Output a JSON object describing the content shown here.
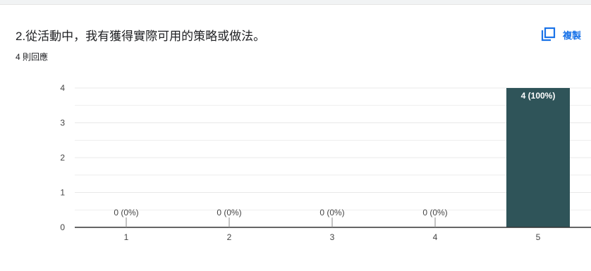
{
  "question": {
    "title": "2.從活動中，我有獲得實際可用的策略或做法。",
    "response_count": "4 則回應"
  },
  "copy_button": {
    "label": "複製",
    "icon": "copy-icon"
  },
  "colors": {
    "bar": "#2f5459",
    "accent": "#1a73e8",
    "gridline": "#e8e8e8",
    "axis": "#333333"
  },
  "chart_data": {
    "type": "bar",
    "categories": [
      "1",
      "2",
      "3",
      "4",
      "5"
    ],
    "values": [
      0,
      0,
      0,
      0,
      4
    ],
    "data_labels": [
      "0 (0%)",
      "0 (0%)",
      "0 (0%)",
      "0 (0%)",
      "4 (100%)"
    ],
    "y_ticks": [
      "0",
      "1",
      "2",
      "3",
      "4"
    ],
    "ylim": [
      0,
      4
    ],
    "grid": true
  }
}
